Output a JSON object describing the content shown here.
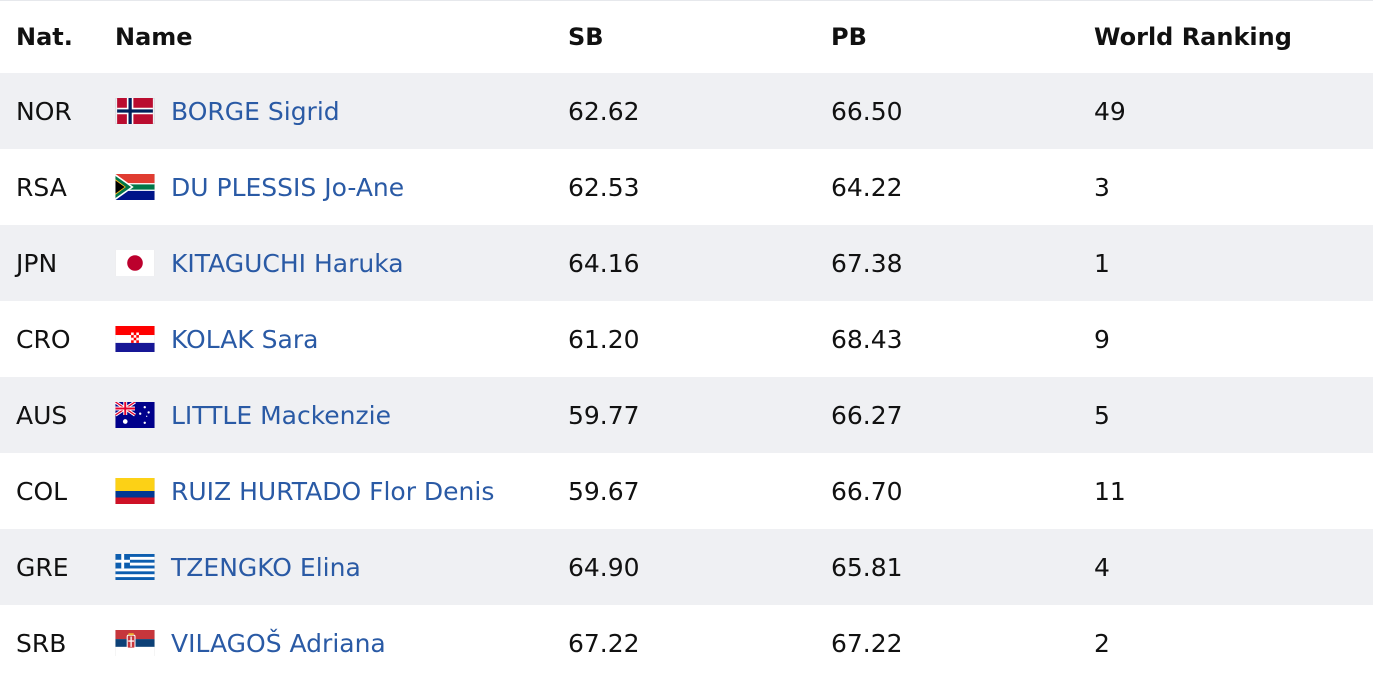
{
  "header": {
    "nat": "Nat.",
    "name": "Name",
    "sb": "SB",
    "pb": "PB",
    "world_ranking": "World Ranking"
  },
  "rows": [
    {
      "nat": "NOR",
      "flag": "norway-flag-icon",
      "name": "BORGE Sigrid",
      "sb": "62.62",
      "pb": "66.50",
      "world_ranking": "49"
    },
    {
      "nat": "RSA",
      "flag": "south-africa-flag-icon",
      "name": "DU PLESSIS Jo-Ane",
      "sb": "62.53",
      "pb": "64.22",
      "world_ranking": "3"
    },
    {
      "nat": "JPN",
      "flag": "japan-flag-icon",
      "name": "KITAGUCHI Haruka",
      "sb": "64.16",
      "pb": "67.38",
      "world_ranking": "1"
    },
    {
      "nat": "CRO",
      "flag": "croatia-flag-icon",
      "name": "KOLAK Sara",
      "sb": "61.20",
      "pb": "68.43",
      "world_ranking": "9"
    },
    {
      "nat": "AUS",
      "flag": "australia-flag-icon",
      "name": "LITTLE Mackenzie",
      "sb": "59.77",
      "pb": "66.27",
      "world_ranking": "5"
    },
    {
      "nat": "COL",
      "flag": "colombia-flag-icon",
      "name": "RUIZ HURTADO Flor Denis",
      "sb": "59.67",
      "pb": "66.70",
      "world_ranking": "11"
    },
    {
      "nat": "GRE",
      "flag": "greece-flag-icon",
      "name": "TZENGKO Elina",
      "sb": "64.90",
      "pb": "65.81",
      "world_ranking": "4"
    },
    {
      "nat": "SRB",
      "flag": "serbia-flag-icon",
      "name": "VILAGOŠ Adriana",
      "sb": "67.22",
      "pb": "67.22",
      "world_ranking": "2"
    }
  ],
  "colors": {
    "link": "#2a5aa5",
    "stripe": "#eff0f3",
    "text": "#111111"
  }
}
